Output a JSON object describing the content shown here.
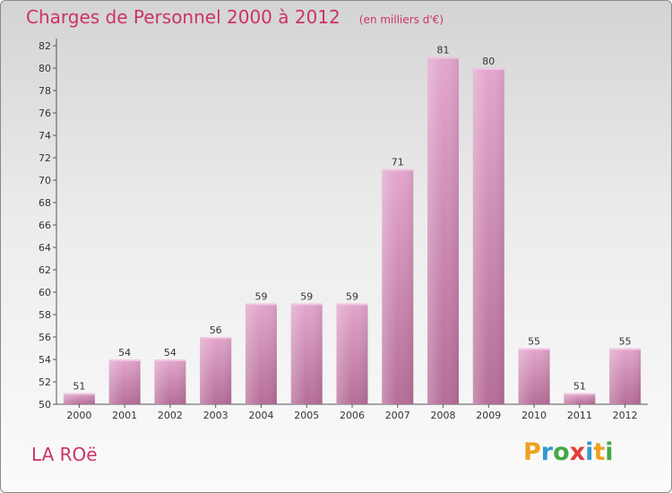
{
  "header": {
    "title": "Charges de Personnel 2000 à 2012",
    "subtitle": "(en milliers d'€)"
  },
  "footer": {
    "commune": "LA ROë",
    "logo_letters": [
      "P",
      "r",
      "o",
      "x",
      "i",
      "t",
      "i"
    ],
    "logo_colors": [
      "#f0a020",
      "#3399cc",
      "#44aa44",
      "#e23d3d",
      "#3399cc",
      "#f0a020",
      "#44aa44"
    ]
  },
  "chart_data": {
    "type": "bar",
    "title": "Charges de Personnel 2000 à 2012",
    "subtitle": "(en milliers d'€)",
    "categories": [
      "2000",
      "2001",
      "2002",
      "2003",
      "2004",
      "2005",
      "2006",
      "2007",
      "2008",
      "2009",
      "2010",
      "2011",
      "2012"
    ],
    "values": [
      51,
      54,
      54,
      56,
      59,
      59,
      59,
      71,
      81,
      80,
      55,
      51,
      55
    ],
    "ylim": [
      50,
      82
    ],
    "yticks": [
      50,
      52,
      54,
      56,
      58,
      60,
      62,
      64,
      66,
      68,
      70,
      72,
      74,
      76,
      78,
      80,
      82
    ],
    "grid": false,
    "bar_color": "#d68bb8",
    "bar_color_light": "#e6a9cf",
    "bar_color_dark": "#a85f8c"
  }
}
